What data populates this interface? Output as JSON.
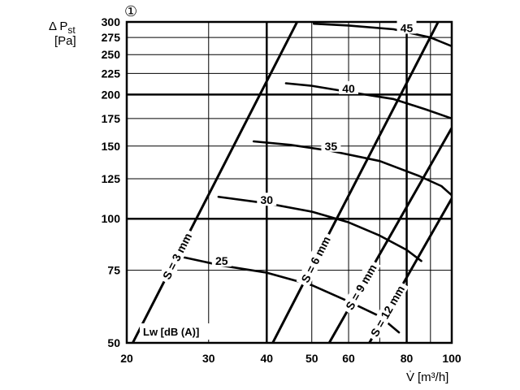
{
  "chart_data": {
    "type": "line",
    "marker": "①",
    "y_axis_label": {
      "line1": "Δ P",
      "sub": "st",
      "line2": "[Pa]"
    },
    "x_axis_label": {
      "symbol": "V̇",
      "unit": "[m³/h]"
    },
    "xlim": [
      20,
      100
    ],
    "ylim": [
      50,
      300
    ],
    "x_scale": "log",
    "y_scale": "log",
    "x_ticks": [
      20,
      30,
      40,
      50,
      60,
      80,
      100
    ],
    "y_ticks": [
      50,
      75,
      100,
      125,
      150,
      175,
      200,
      225,
      250,
      275,
      300
    ],
    "x_grid": [
      20,
      30,
      40,
      50,
      60,
      70,
      80,
      90,
      100
    ],
    "x_grid_bold": [
      40,
      80
    ],
    "y_grid_bold": [
      100,
      200
    ],
    "grid": true,
    "setting_lines": [
      {
        "name": "S = 3 mm",
        "label": "S = 3 mm",
        "points": [
          [
            20.6,
            50
          ],
          [
            46.5,
            300
          ]
        ]
      },
      {
        "name": "S = 6 mm",
        "label": "S = 6 mm",
        "points": [
          [
            41.2,
            50
          ],
          [
            93.5,
            300
          ]
        ]
      },
      {
        "name": "S = 9 mm",
        "label": "S = 9 mm",
        "points": [
          [
            54.5,
            50
          ],
          [
            100,
            166
          ]
        ]
      },
      {
        "name": "S = 12 mm",
        "label": "S = 12 mm",
        "points": [
          [
            66.5,
            50
          ],
          [
            100,
            112
          ]
        ]
      }
    ],
    "noise_curves": [
      {
        "name": "25",
        "label": "25",
        "points": [
          [
            26.0,
            81
          ],
          [
            32,
            77
          ],
          [
            40,
            74
          ],
          [
            50,
            69
          ],
          [
            60,
            63
          ],
          [
            70,
            58
          ],
          [
            77,
            53
          ]
        ],
        "label_at": [
          32,
          79
        ]
      },
      {
        "name": "30",
        "label": "30",
        "points": [
          [
            31.5,
            113
          ],
          [
            40,
            109
          ],
          [
            50,
            104
          ],
          [
            60,
            98
          ],
          [
            70,
            91
          ],
          [
            80,
            84
          ],
          [
            86,
            79
          ]
        ],
        "label_at": [
          40,
          111
        ]
      },
      {
        "name": "35",
        "label": "35",
        "points": [
          [
            37.5,
            154
          ],
          [
            45,
            151
          ],
          [
            55,
            146
          ],
          [
            70,
            138
          ],
          [
            85,
            127
          ],
          [
            95,
            120
          ],
          [
            100,
            114
          ]
        ],
        "label_at": [
          55,
          150
        ]
      },
      {
        "name": "40",
        "label": "40",
        "points": [
          [
            44.0,
            213
          ],
          [
            50,
            210
          ],
          [
            60,
            203
          ],
          [
            75,
            195
          ],
          [
            88,
            184
          ],
          [
            100,
            175
          ]
        ],
        "label_at": [
          60,
          207
        ]
      },
      {
        "name": "45",
        "label": "45",
        "points": [
          [
            50.5,
            297
          ],
          [
            60,
            294
          ],
          [
            75,
            288
          ],
          [
            90,
            275
          ],
          [
            100,
            262
          ]
        ],
        "label_at": [
          80,
          290
        ]
      }
    ],
    "legend_label": "Lw [dB (A)]"
  }
}
